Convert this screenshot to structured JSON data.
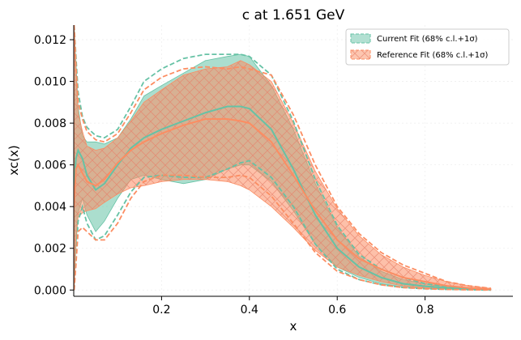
{
  "chart_data": {
    "type": "area",
    "title": "c at 1.651 GeV",
    "xlabel": "x",
    "ylabel": "xc(x)",
    "xlim": [
      0.0,
      1.0
    ],
    "ylim": [
      -0.0003,
      0.0127
    ],
    "x_ticks": [
      {
        "value": 0.2,
        "label": "0.2"
      },
      {
        "value": 0.4,
        "label": "0.4"
      },
      {
        "value": 0.6,
        "label": "0.6"
      },
      {
        "value": 0.8,
        "label": "0.8"
      }
    ],
    "y_ticks": [
      {
        "value": 0.0,
        "label": "0.000"
      },
      {
        "value": 0.002,
        "label": "0.002"
      },
      {
        "value": 0.004,
        "label": "0.004"
      },
      {
        "value": 0.006,
        "label": "0.006"
      },
      {
        "value": 0.008,
        "label": "0.008"
      },
      {
        "value": 0.01,
        "label": "0.010"
      },
      {
        "value": 0.012,
        "label": "0.012"
      }
    ],
    "grid": true,
    "legend_position": "top-right",
    "x": [
      0.001,
      0.005,
      0.01,
      0.02,
      0.03,
      0.05,
      0.07,
      0.1,
      0.13,
      0.16,
      0.2,
      0.25,
      0.3,
      0.35,
      0.38,
      0.4,
      0.45,
      0.5,
      0.55,
      0.6,
      0.65,
      0.7,
      0.75,
      0.8,
      0.85,
      0.9,
      0.95
    ],
    "series": [
      {
        "name": "Current Fit (68% c.l.+1σ)",
        "color": "#66c2a5",
        "central": [
          0.005,
          0.0063,
          0.0067,
          0.0063,
          0.0055,
          0.0048,
          0.0051,
          0.006,
          0.0068,
          0.0073,
          0.0077,
          0.0081,
          0.0085,
          0.0088,
          0.0088,
          0.0087,
          0.0077,
          0.0058,
          0.0036,
          0.002,
          0.0011,
          0.0006,
          0.0003,
          0.00018,
          0.0001,
          5e-05,
          2e-05
        ],
        "band_low": [
          0.0,
          0.002,
          0.0037,
          0.0044,
          0.0036,
          0.0028,
          0.0033,
          0.0044,
          0.0053,
          0.0055,
          0.0053,
          0.0051,
          0.0053,
          0.0058,
          0.006,
          0.006,
          0.0052,
          0.0038,
          0.0022,
          0.0011,
          0.0006,
          0.0003,
          0.00015,
          8e-05,
          4e-05,
          2e-05,
          1e-05
        ],
        "band_high": [
          0.0127,
          0.011,
          0.0088,
          0.0074,
          0.0071,
          0.0071,
          0.007,
          0.0073,
          0.0082,
          0.0093,
          0.0098,
          0.0104,
          0.011,
          0.0112,
          0.0113,
          0.0112,
          0.0098,
          0.0077,
          0.0051,
          0.003,
          0.0016,
          0.0009,
          0.0005,
          0.0003,
          0.00016,
          8e-05,
          3e-05
        ],
        "sigma_low": [
          0.0,
          0.0015,
          0.0033,
          0.004,
          0.0032,
          0.0024,
          0.0026,
          0.0036,
          0.0047,
          0.0054,
          0.0055,
          0.0054,
          0.0054,
          0.0058,
          0.0061,
          0.0062,
          0.0054,
          0.004,
          0.0022,
          0.001,
          0.0005,
          0.00025,
          0.00012,
          6e-05,
          3e-05,
          1e-05,
          0.0
        ],
        "sigma_high": [
          0.0127,
          0.0112,
          0.0095,
          0.0083,
          0.0078,
          0.0074,
          0.0073,
          0.0077,
          0.0088,
          0.01,
          0.0106,
          0.0111,
          0.0113,
          0.0113,
          0.0113,
          0.0112,
          0.0103,
          0.0081,
          0.0053,
          0.0031,
          0.0017,
          0.001,
          0.0006,
          0.0003,
          0.00016,
          8e-05,
          3e-05
        ]
      },
      {
        "name": "Reference Fit (68% c.l.+1σ)",
        "color": "#fc8d62",
        "central": [
          0.004,
          0.0058,
          0.006,
          0.0056,
          0.0052,
          0.005,
          0.0053,
          0.0061,
          0.0067,
          0.0071,
          0.0075,
          0.0079,
          0.0082,
          0.0082,
          0.0081,
          0.008,
          0.0071,
          0.0055,
          0.0038,
          0.0024,
          0.0015,
          0.001,
          0.0006,
          0.0004,
          0.0002,
          0.0001,
          3e-05
        ],
        "band_low": [
          0.0,
          0.0025,
          0.0035,
          0.0037,
          0.0038,
          0.0039,
          0.0042,
          0.0046,
          0.0049,
          0.005,
          0.0052,
          0.0053,
          0.0053,
          0.0052,
          0.005,
          0.0048,
          0.004,
          0.003,
          0.0019,
          0.0011,
          0.0007,
          0.0004,
          0.0002,
          0.0001,
          5e-05,
          2e-05,
          1e-05
        ],
        "band_high": [
          0.0127,
          0.0105,
          0.0085,
          0.0076,
          0.0069,
          0.0067,
          0.0068,
          0.0073,
          0.0081,
          0.009,
          0.0096,
          0.0103,
          0.0106,
          0.0107,
          0.011,
          0.0108,
          0.01,
          0.008,
          0.0057,
          0.0039,
          0.0026,
          0.0017,
          0.0011,
          0.0007,
          0.0004,
          0.0002,
          8e-05
        ],
        "sigma_low": [
          0.0,
          0.0012,
          0.0028,
          0.003,
          0.0028,
          0.0024,
          0.0024,
          0.0032,
          0.0044,
          0.0052,
          0.0055,
          0.0055,
          0.0054,
          0.0054,
          0.0055,
          0.0054,
          0.0045,
          0.0032,
          0.0018,
          0.0009,
          0.0005,
          0.00025,
          0.00012,
          6e-05,
          3e-05,
          1e-05,
          0.0
        ],
        "sigma_high": [
          0.0127,
          0.0108,
          0.009,
          0.0082,
          0.0076,
          0.0072,
          0.0071,
          0.0075,
          0.0085,
          0.0096,
          0.0102,
          0.0106,
          0.0107,
          0.0106,
          0.0107,
          0.0106,
          0.0103,
          0.0084,
          0.006,
          0.004,
          0.0027,
          0.0018,
          0.0012,
          0.0008,
          0.0004,
          0.0002,
          8e-05
        ]
      }
    ]
  }
}
